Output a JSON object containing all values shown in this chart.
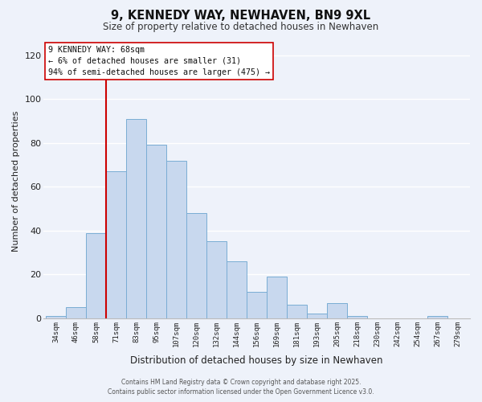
{
  "title": "9, KENNEDY WAY, NEWHAVEN, BN9 9XL",
  "subtitle": "Size of property relative to detached houses in Newhaven",
  "xlabel": "Distribution of detached houses by size in Newhaven",
  "ylabel": "Number of detached properties",
  "bar_color": "#c8d8ee",
  "bar_edge_color": "#7aadd4",
  "background_color": "#eef2fa",
  "grid_color": "#ffffff",
  "bin_labels": [
    "34sqm",
    "46sqm",
    "58sqm",
    "71sqm",
    "83sqm",
    "95sqm",
    "107sqm",
    "120sqm",
    "132sqm",
    "144sqm",
    "156sqm",
    "169sqm",
    "181sqm",
    "193sqm",
    "205sqm",
    "218sqm",
    "230sqm",
    "242sqm",
    "254sqm",
    "267sqm",
    "279sqm"
  ],
  "bar_heights": [
    1,
    5,
    39,
    67,
    91,
    79,
    72,
    48,
    35,
    26,
    12,
    19,
    6,
    2,
    7,
    1,
    0,
    0,
    0,
    1,
    0
  ],
  "vline_bin_index": 3,
  "vline_color": "#cc0000",
  "ylim": [
    0,
    125
  ],
  "yticks": [
    0,
    20,
    40,
    60,
    80,
    100,
    120
  ],
  "annotation_title": "9 KENNEDY WAY: 68sqm",
  "annotation_line1": "← 6% of detached houses are smaller (31)",
  "annotation_line2": "94% of semi-detached houses are larger (475) →",
  "footer_line1": "Contains HM Land Registry data © Crown copyright and database right 2025.",
  "footer_line2": "Contains public sector information licensed under the Open Government Licence v3.0."
}
